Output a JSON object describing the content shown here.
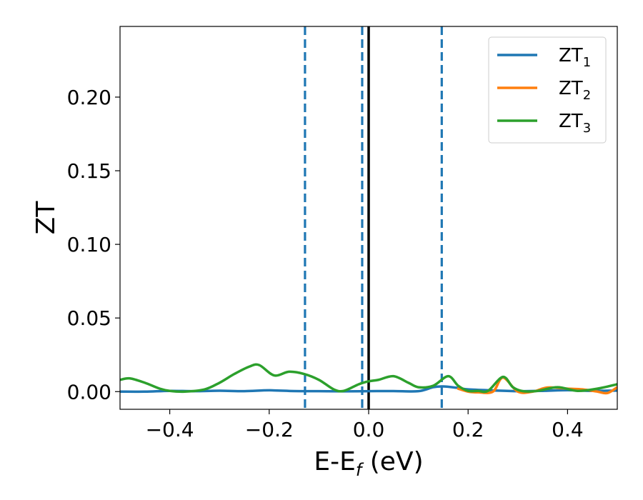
{
  "chart_data": {
    "type": "line",
    "xlabel": {
      "main": "E-E",
      "sub": "f",
      "unit": " (eV)"
    },
    "ylabel": "ZT",
    "xlim": [
      -0.5,
      0.5
    ],
    "ylim": [
      -0.012,
      0.248
    ],
    "xticks": [
      -0.4,
      -0.2,
      0.0,
      0.2,
      0.4
    ],
    "xtick_labels": [
      "−0.4",
      "−0.2",
      "0.0",
      "0.2",
      "0.4"
    ],
    "yticks": [
      0.0,
      0.05,
      0.1,
      0.15,
      0.2
    ],
    "ytick_labels": [
      "0.00",
      "0.05",
      "0.10",
      "0.15",
      "0.20"
    ],
    "grid": false,
    "legend_position": "top-right",
    "vlines": [
      {
        "x": -0.128,
        "style": "dashed",
        "color": "#1f77b4"
      },
      {
        "x": -0.013,
        "style": "dashed",
        "color": "#1f77b4"
      },
      {
        "x": 0.0,
        "style": "solid",
        "color": "#000000"
      },
      {
        "x": 0.147,
        "style": "dashed",
        "color": "#1f77b4"
      }
    ],
    "series": [
      {
        "name": "ZT",
        "name_sub": "1",
        "color": "#1f77b4",
        "x": [
          -0.5,
          -0.45,
          -0.4,
          -0.35,
          -0.3,
          -0.25,
          -0.2,
          -0.15,
          -0.1,
          -0.05,
          0.0,
          0.05,
          0.1,
          0.13,
          0.15,
          0.18,
          0.2,
          0.25,
          0.3,
          0.35,
          0.4,
          0.45,
          0.5
        ],
        "values": [
          0.0,
          0.0,
          0.0005,
          0.0003,
          0.0006,
          0.0003,
          0.0009,
          0.0004,
          0.0003,
          0.0002,
          0.0003,
          0.0004,
          0.0003,
          0.003,
          0.0035,
          0.0025,
          0.0015,
          0.0008,
          0.0003,
          0.0005,
          0.001,
          0.0005,
          0.0007
        ]
      },
      {
        "name": "ZT",
        "name_sub": "2",
        "color": "#ff7f0e",
        "x": [
          0.18,
          0.2,
          0.22,
          0.25,
          0.27,
          0.3,
          0.33,
          0.36,
          0.4,
          0.43,
          0.46,
          0.48,
          0.5
        ],
        "values": [
          0.002,
          0.0,
          -0.0005,
          0.0,
          0.0095,
          0.0,
          0.0,
          0.0028,
          0.002,
          0.0015,
          0.0,
          -0.001,
          0.003
        ]
      },
      {
        "name": "ZT",
        "name_sub": "3",
        "color": "#2ca02c",
        "x": [
          -0.5,
          -0.48,
          -0.45,
          -0.42,
          -0.4,
          -0.37,
          -0.33,
          -0.3,
          -0.27,
          -0.24,
          -0.22,
          -0.19,
          -0.16,
          -0.13,
          -0.1,
          -0.07,
          -0.05,
          -0.02,
          0.0,
          0.02,
          0.05,
          0.08,
          0.1,
          0.13,
          0.16,
          0.18,
          0.2,
          0.22,
          0.24,
          0.27,
          0.29,
          0.31,
          0.34,
          0.38,
          0.42,
          0.46,
          0.5
        ],
        "values": [
          0.008,
          0.009,
          0.006,
          0.002,
          0.0005,
          0.0,
          0.0015,
          0.006,
          0.012,
          0.017,
          0.018,
          0.011,
          0.0135,
          0.012,
          0.008,
          0.0015,
          0.0005,
          0.005,
          0.007,
          0.008,
          0.0105,
          0.006,
          0.003,
          0.004,
          0.0105,
          0.004,
          0.0005,
          0.0005,
          0.0005,
          0.01,
          0.003,
          0.0003,
          0.0005,
          0.003,
          0.0005,
          0.002,
          0.005
        ]
      }
    ]
  }
}
